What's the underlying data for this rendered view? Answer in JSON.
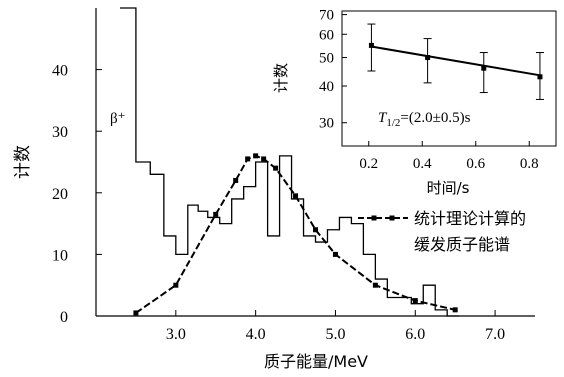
{
  "chart_data": [
    {
      "type": "line",
      "title": "",
      "xlabel": "质子能量/MeV",
      "ylabel": "计数",
      "xlim": [
        2.0,
        7.5
      ],
      "ylim": [
        0,
        50
      ],
      "x_ticks": [
        3.0,
        4.0,
        5.0,
        6.0,
        7.0
      ],
      "x_tick_labels": [
        "3.0",
        "4.0",
        "5.0",
        "6.0",
        "7.0"
      ],
      "y_ticks": [
        0,
        10,
        20,
        30,
        40
      ],
      "y_tick_labels": [
        "0",
        "10",
        "20",
        "30",
        "40"
      ],
      "grid": false,
      "annotation": "β⁺",
      "legend_placement": "right",
      "series": [
        {
          "name": "",
          "style": "step",
          "x": [
            2.3,
            2.5,
            2.68,
            2.85,
            3.0,
            3.15,
            3.28,
            3.4,
            3.55,
            3.7,
            3.85,
            4.0,
            4.15,
            4.3,
            4.45,
            4.6,
            4.75,
            4.9,
            5.05,
            5.2,
            5.35,
            5.5,
            5.65,
            5.8,
            5.95,
            6.1,
            6.25,
            6.4,
            6.55
          ],
          "y": [
            50,
            25,
            23,
            13,
            10,
            18,
            17,
            16,
            15,
            19,
            21,
            25,
            13,
            26,
            19,
            13,
            12,
            14,
            16,
            15,
            10,
            6,
            3,
            3,
            2,
            5,
            1,
            0,
            0
          ]
        },
        {
          "name": "统计理论计算的缓发质子能谱",
          "style": "dashed-line-markers",
          "x": [
            2.5,
            3.0,
            3.5,
            3.75,
            3.9,
            4.0,
            4.1,
            4.25,
            4.5,
            4.75,
            5.0,
            5.5,
            6.0,
            6.5
          ],
          "y": [
            0.5,
            5,
            16.5,
            22,
            25.5,
            26,
            25.5,
            24,
            19.5,
            14,
            10,
            5,
            2.5,
            1
          ]
        }
      ]
    },
    {
      "type": "line",
      "title": "",
      "xlabel": "时间/s",
      "ylabel": "计数",
      "xlim": [
        0.1,
        0.9
      ],
      "ylim": [
        25,
        72
      ],
      "y_scale": "log",
      "x_ticks": [
        0.2,
        0.4,
        0.6,
        0.8
      ],
      "x_tick_labels": [
        "0.2",
        "0.4",
        "0.6",
        "0.8"
      ],
      "y_ticks": [
        30,
        40,
        50,
        60,
        70
      ],
      "y_tick_labels": [
        "30",
        "40",
        "50",
        "60",
        "70"
      ],
      "grid": false,
      "annotation_prefix": "T",
      "annotation_sub": "1/2",
      "annotation_suffix": "=(2.0±0.5)s",
      "series": [
        {
          "name": "",
          "style": "points-with-error-bars",
          "x": [
            0.21,
            0.42,
            0.63,
            0.84
          ],
          "y": [
            55,
            50,
            46,
            43
          ],
          "y_low": [
            45,
            41,
            38,
            36
          ],
          "y_high": [
            65,
            58,
            52,
            52
          ]
        },
        {
          "name": "",
          "style": "fit-line",
          "x": [
            0.21,
            0.84
          ],
          "y": [
            54.5,
            43.5
          ]
        }
      ]
    }
  ]
}
